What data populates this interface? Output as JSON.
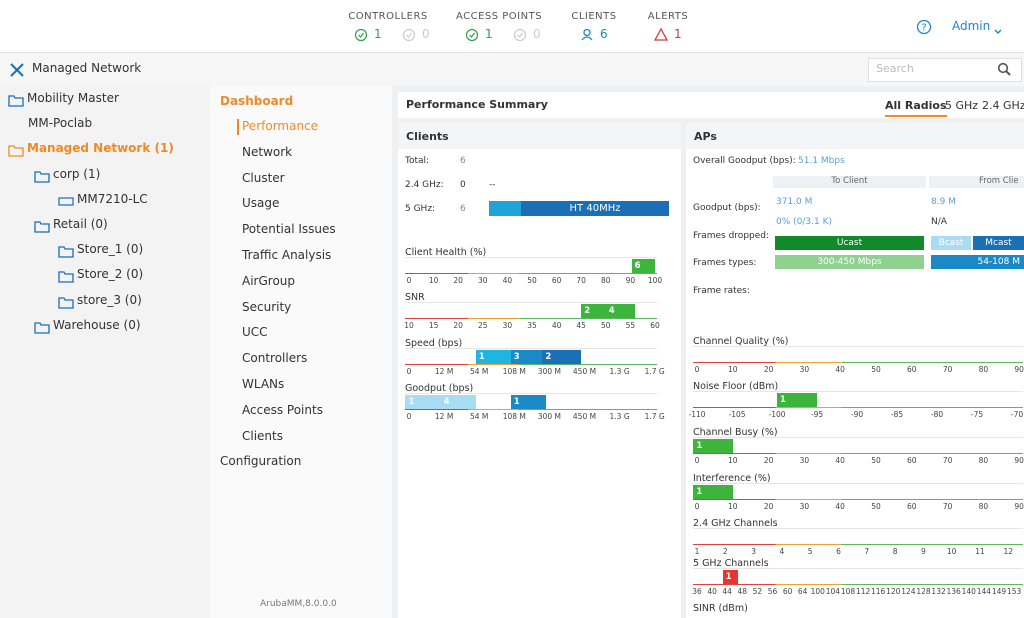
{
  "header": {
    "stats": [
      {
        "label": "CONTROLLERS",
        "values": [
          "1",
          "0"
        ]
      },
      {
        "label": "ACCESS POINTS",
        "values": [
          "1",
          "0"
        ]
      },
      {
        "label": "CLIENTS",
        "values": [
          "6"
        ]
      },
      {
        "label": "ALERTS",
        "values": [
          "1"
        ]
      }
    ],
    "user": "Admin"
  },
  "breadcrumb": "Managed Network",
  "search": "Search",
  "tree": [
    "Mobility Master",
    "MM-Poclab",
    "Managed Network (1)",
    "corp (1)",
    "MM7210-LC",
    "Retail (0)",
    "Store_1 (0)",
    "Store_2 (0)",
    "store_3 (0)",
    "Warehouse (0)"
  ],
  "nav": {
    "title": "Dashboard",
    "items": [
      "Performance",
      "Network",
      "Cluster",
      "Usage",
      "Potential Issues",
      "Traffic Analysis",
      "AirGroup",
      "Security",
      "UCC",
      "Controllers",
      "WLANs",
      "Access Points",
      "Clients"
    ],
    "footer": "Configuration"
  },
  "version": "ArubaMM,8.0.0.0",
  "summary": {
    "title": "Performance Summary",
    "tabs": [
      "All Radios",
      "5 GHz",
      "2.4 GHz"
    ],
    "clients": {
      "title": "Clients",
      "rows": [
        [
          "Total:",
          "6"
        ],
        [
          "2.4 GHz:",
          "0",
          "--"
        ],
        [
          "5 GHz:",
          "6",
          "HT 40MHz"
        ]
      ],
      "strips": [
        {
          "title": "Client Health (%)",
          "ticks": [
            "0",
            "10",
            "20",
            "30",
            "40",
            "50",
            "60",
            "70",
            "80",
            "90",
            "100"
          ],
          "bars": [
            "6"
          ]
        },
        {
          "title": "SNR",
          "ticks": [
            "10",
            "15",
            "20",
            "25",
            "30",
            "35",
            "40",
            "45",
            "50",
            "55",
            "60"
          ],
          "bars": [
            "2",
            "4"
          ]
        },
        {
          "title": "Speed (bps)",
          "ticks": [
            "0",
            "12 M",
            "54 M",
            "108 M",
            "300 M",
            "450 M",
            "1.3 G",
            "1.7 G"
          ],
          "bars": [
            "1",
            "3",
            "2"
          ]
        },
        {
          "title": "Goodput (bps)",
          "ticks": [
            "0",
            "12 M",
            "54 M",
            "108 M",
            "300 M",
            "450 M",
            "1.3 G",
            "1.7 G"
          ],
          "bars": [
            "1",
            "4",
            "1"
          ]
        }
      ]
    },
    "aps": {
      "title": "APs",
      "overall": [
        "Overall Goodput (bps):",
        "51.1 Mbps"
      ],
      "columns": [
        "To Client",
        "From Clie"
      ],
      "goodput": {
        "label": "Goodput (bps):",
        "values": [
          "371.0 M",
          "8.9 M"
        ],
        "rates": [
          "0% (0/3.1 K)",
          "N/A"
        ]
      },
      "frames_dropped": {
        "label": "Frames dropped:",
        "bars": [
          "Ucast",
          "Bcast",
          "Mcast"
        ]
      },
      "frames_types": {
        "label": "Frames types:",
        "bars": [
          "300-450 Mbps",
          "54-108 M"
        ]
      },
      "frame_rates": "Frame rates:",
      "strips": [
        {
          "title": "Channel Quality (%)",
          "ticks": [
            "0",
            "10",
            "20",
            "30",
            "40",
            "50",
            "60",
            "70",
            "80",
            "90"
          ],
          "bars": []
        },
        {
          "title": "Noise Floor (dBm)",
          "ticks": [
            "-110",
            "-105",
            "-100",
            "-95",
            "-90",
            "-85",
            "-80",
            "-75",
            "-70"
          ],
          "bars": [
            "1"
          ]
        },
        {
          "title": "Channel Busy (%)",
          "ticks": [
            "0",
            "10",
            "20",
            "30",
            "40",
            "50",
            "60",
            "70",
            "80",
            "90"
          ],
          "bars": [
            "1"
          ]
        },
        {
          "title": "Interference (%)",
          "ticks": [
            "0",
            "10",
            "20",
            "30",
            "40",
            "50",
            "60",
            "70",
            "80",
            "90"
          ],
          "bars": [
            "1"
          ]
        },
        {
          "title": "2.4 GHz Channels",
          "ticks": [
            "1",
            "2",
            "3",
            "4",
            "5",
            "6",
            "7",
            "8",
            "9",
            "10",
            "11",
            "12"
          ],
          "bars": []
        },
        {
          "title": "5 GHz Channels",
          "ticks": [
            "36",
            "40",
            "44",
            "48",
            "52",
            "56",
            "60",
            "64",
            "100",
            "104",
            "108",
            "112",
            "116",
            "120",
            "124",
            "128",
            "132",
            "136",
            "140",
            "144",
            "149",
            "153"
          ],
          "bars": [
            "1"
          ]
        }
      ],
      "sinr": "SINR (dBm)"
    }
  }
}
